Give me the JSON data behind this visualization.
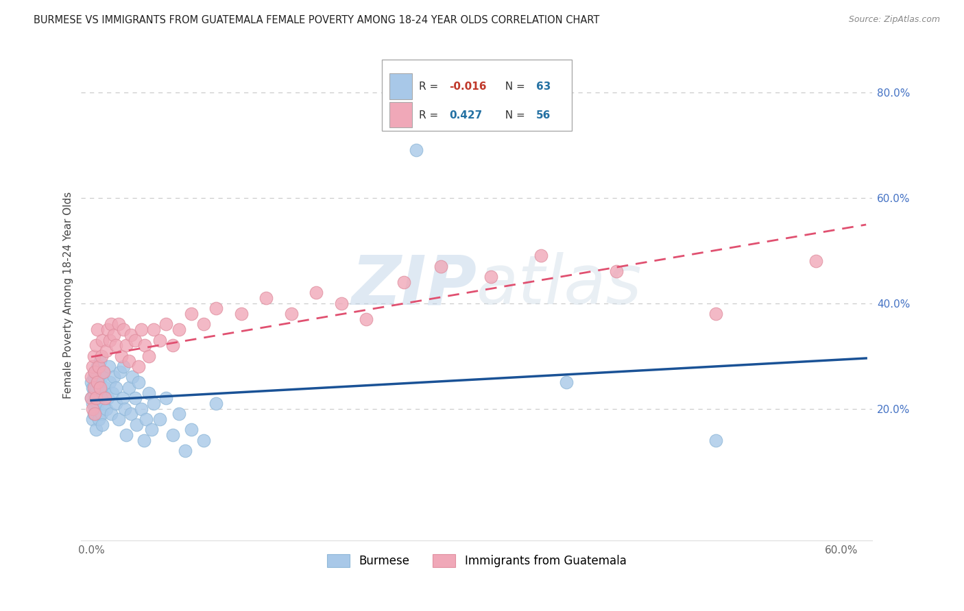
{
  "title": "BURMESE VS IMMIGRANTS FROM GUATEMALA FEMALE POVERTY AMONG 18-24 YEAR OLDS CORRELATION CHART",
  "source": "Source: ZipAtlas.com",
  "ylabel": "Female Poverty Among 18-24 Year Olds",
  "xlim": [
    -0.008,
    0.625
  ],
  "ylim": [
    -0.05,
    0.88
  ],
  "burmese_color": "#a8c8e8",
  "burmese_edge": "#90b8d8",
  "guatemala_color": "#f0a8b8",
  "guatemala_edge": "#e090a0",
  "burmese_line_color": "#1a5296",
  "guatemala_line_color": "#e05070",
  "burmese_R": -0.016,
  "burmese_N": 63,
  "guatemala_R": 0.427,
  "guatemala_N": 56,
  "watermark": "ZIPatlas",
  "legend_label_1": "Burmese",
  "legend_label_2": "Immigrants from Guatemala",
  "legend_color_R": "#c0392b",
  "legend_color_N": "#2471a3",
  "legend_color_R2": "#2471a3",
  "burmese_x": [
    0.0,
    0.0,
    0.001,
    0.001,
    0.001,
    0.002,
    0.002,
    0.002,
    0.003,
    0.003,
    0.004,
    0.004,
    0.005,
    0.005,
    0.006,
    0.006,
    0.007,
    0.007,
    0.008,
    0.008,
    0.009,
    0.009,
    0.01,
    0.01,
    0.011,
    0.012,
    0.013,
    0.014,
    0.015,
    0.016,
    0.017,
    0.018,
    0.02,
    0.02,
    0.022,
    0.023,
    0.025,
    0.026,
    0.027,
    0.028,
    0.03,
    0.032,
    0.033,
    0.035,
    0.036,
    0.038,
    0.04,
    0.042,
    0.044,
    0.046,
    0.048,
    0.05,
    0.055,
    0.06,
    0.065,
    0.07,
    0.075,
    0.08,
    0.09,
    0.1,
    0.26,
    0.38,
    0.5
  ],
  "burmese_y": [
    0.22,
    0.25,
    0.18,
    0.21,
    0.24,
    0.19,
    0.23,
    0.26,
    0.2,
    0.27,
    0.16,
    0.24,
    0.21,
    0.28,
    0.18,
    0.25,
    0.22,
    0.29,
    0.19,
    0.26,
    0.17,
    0.23,
    0.21,
    0.27,
    0.24,
    0.2,
    0.22,
    0.28,
    0.25,
    0.19,
    0.23,
    0.26,
    0.21,
    0.24,
    0.18,
    0.27,
    0.22,
    0.28,
    0.2,
    0.15,
    0.24,
    0.19,
    0.26,
    0.22,
    0.17,
    0.25,
    0.2,
    0.14,
    0.18,
    0.23,
    0.16,
    0.21,
    0.18,
    0.22,
    0.15,
    0.19,
    0.12,
    0.16,
    0.14,
    0.21,
    0.69,
    0.25,
    0.14
  ],
  "guatemala_x": [
    0.0,
    0.0,
    0.001,
    0.001,
    0.002,
    0.002,
    0.003,
    0.003,
    0.004,
    0.004,
    0.005,
    0.005,
    0.006,
    0.007,
    0.008,
    0.009,
    0.01,
    0.011,
    0.012,
    0.013,
    0.015,
    0.016,
    0.018,
    0.02,
    0.022,
    0.024,
    0.026,
    0.028,
    0.03,
    0.032,
    0.035,
    0.038,
    0.04,
    0.043,
    0.046,
    0.05,
    0.055,
    0.06,
    0.065,
    0.07,
    0.08,
    0.09,
    0.1,
    0.12,
    0.14,
    0.16,
    0.18,
    0.2,
    0.22,
    0.25,
    0.28,
    0.32,
    0.36,
    0.42,
    0.5,
    0.58
  ],
  "guatemala_y": [
    0.22,
    0.26,
    0.2,
    0.28,
    0.24,
    0.3,
    0.19,
    0.27,
    0.22,
    0.32,
    0.25,
    0.35,
    0.28,
    0.24,
    0.3,
    0.33,
    0.27,
    0.22,
    0.31,
    0.35,
    0.33,
    0.36,
    0.34,
    0.32,
    0.36,
    0.3,
    0.35,
    0.32,
    0.29,
    0.34,
    0.33,
    0.28,
    0.35,
    0.32,
    0.3,
    0.35,
    0.33,
    0.36,
    0.32,
    0.35,
    0.38,
    0.36,
    0.39,
    0.38,
    0.41,
    0.38,
    0.42,
    0.4,
    0.37,
    0.44,
    0.47,
    0.45,
    0.49,
    0.46,
    0.38,
    0.48
  ]
}
